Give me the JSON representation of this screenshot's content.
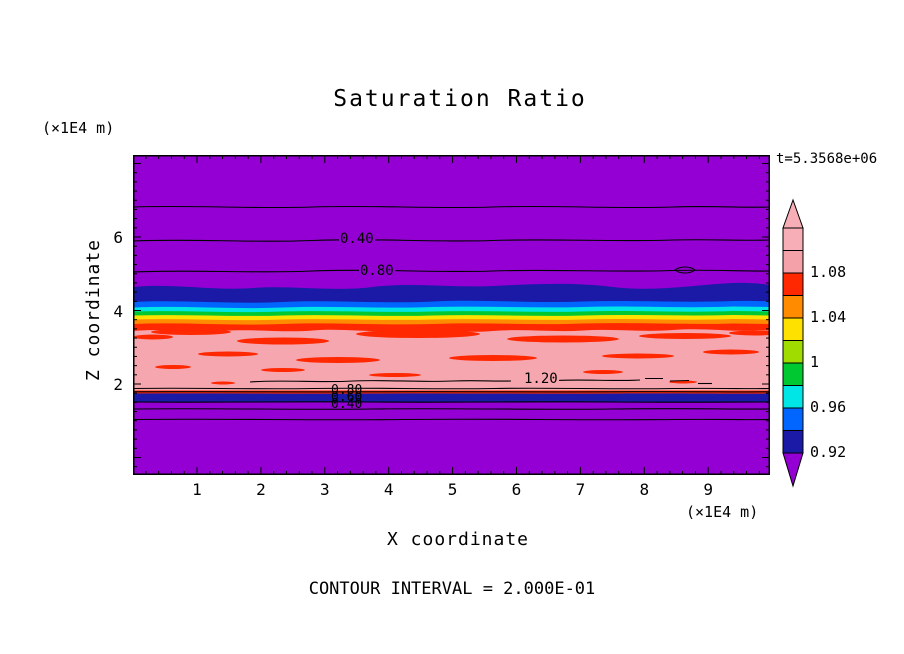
{
  "title": "Saturation Ratio",
  "time_label": "t=5.3568e+06",
  "axes": {
    "x_label": "X coordinate",
    "y_label": "Z coordinate",
    "x_unit": "(×1E4 m)",
    "y_unit": "(×1E4 m)",
    "x_tick_labels": [
      "1",
      "2",
      "3",
      "4",
      "5",
      "6",
      "7",
      "8",
      "9"
    ],
    "y_tick_labels": [
      "6",
      "4",
      "2"
    ]
  },
  "footer": {
    "contour_interval": "CONTOUR INTERVAL = 2.000E-01"
  },
  "contour_labels": {
    "upper_040": "0.40",
    "upper_080": "0.80",
    "mid_120": "1.20",
    "cluster": [
      "0.80",
      "0.60",
      "0.40"
    ]
  },
  "colorbar": {
    "tick_labels": [
      "1.08",
      "1.04",
      "1",
      "0.96",
      "0.92"
    ],
    "block_colors_top_to_bottom": [
      "#F8AEB6",
      "#F5A1A9",
      "#FF2800",
      "#FF8C00",
      "#FFE100",
      "#A0DC00",
      "#00C830",
      "#00E5E5",
      "#0066FF",
      "#1A1AA6"
    ],
    "top_arrow_color": "#F8AEB6",
    "bottom_arrow_color": "#9400D3"
  },
  "colors": {
    "purple": "#9400D3",
    "navy": "#1A1AA6",
    "blue": "#0066FF",
    "cyan": "#00E5E5",
    "green": "#00C830",
    "yellow": "#FFE100",
    "orange": "#FF8C00",
    "red": "#FF2800",
    "pink": "#F6A6AE"
  },
  "chart_data": {
    "type": "heatmap",
    "subtype": "filled-contour",
    "title": "Saturation Ratio",
    "xlabel": "X coordinate (×1E4 m)",
    "ylabel": "Z coordinate (×1E4 m)",
    "xlim": [
      0,
      10
    ],
    "ylim": [
      0,
      8.2
    ],
    "x_ticks": [
      1,
      2,
      3,
      4,
      5,
      6,
      7,
      8,
      9
    ],
    "y_ticks": [
      2,
      4,
      6
    ],
    "time_annotation": "t=5.3568e+06",
    "contour_interval": 0.2,
    "line_contour_levels_labeled": [
      0.4,
      0.8,
      1.2
    ],
    "colorbar_levels_top_to_bottom": [
      1.08,
      1.04,
      1.0,
      0.96,
      0.92
    ],
    "legend_position": "right",
    "grid": false,
    "bands_bottom_to_top": [
      {
        "z_range": [
          0.0,
          1.75
        ],
        "saturation": "< 0.9 (declining below 0.4 with depth; 0.40 contour near z≈1.5)",
        "color": "purple"
      },
      {
        "z_range": [
          1.75,
          1.95
        ],
        "saturation": "0.92–0.96",
        "color": "navy"
      },
      {
        "z_range": [
          1.95,
          2.05
        ],
        "saturation": "0.4–1.2 sharp transition (stacked contour lines 0.40/0.60/0.80/1.00/1.20)",
        "color": "thin red/dark bands"
      },
      {
        "z_range": [
          2.05,
          3.85
        ],
        "saturation": "≈ 1.08–1.12 supersaturated plateau with streaks ≈1.06–1.08",
        "color": "pink with red streaks"
      },
      {
        "z_range": [
          3.85,
          4.05
        ],
        "saturation": "1.0–1.08",
        "color": "red/orange/yellow thin bands"
      },
      {
        "z_range": [
          4.05,
          4.25
        ],
        "saturation": "0.96–1.0",
        "color": "green/cyan thin bands"
      },
      {
        "z_range": [
          4.25,
          4.55
        ],
        "saturation": "0.90–0.96",
        "color": "blue/navy band"
      },
      {
        "z_range": [
          4.55,
          8.2
        ],
        "saturation": "< 0.9; 0.80 contour at z≈4.9, 0.40 contour at z≈5.9",
        "color": "purple"
      }
    ]
  }
}
